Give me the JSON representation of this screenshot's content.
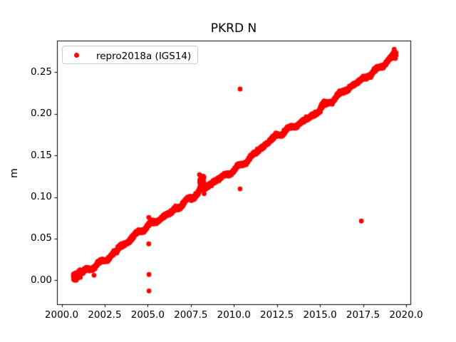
{
  "figure": {
    "background_color": "#ffffff",
    "spine_color": "#000000",
    "text_color": "#000000"
  },
  "chart_data": {
    "type": "scatter",
    "title": "PKRD N",
    "xlabel": "",
    "ylabel": "m",
    "grid": false,
    "xlim": [
      1999.73,
      2020.25
    ],
    "ylim": [
      -0.0293,
      0.2876
    ],
    "xticks": {
      "values": [
        2000.0,
        2002.5,
        2005.0,
        2007.5,
        2010.0,
        2012.5,
        2015.0,
        2017.5,
        2020.0
      ],
      "labels": [
        "2000.0",
        "2002.5",
        "2005.0",
        "2007.5",
        "2010.0",
        "2012.5",
        "2015.0",
        "2017.5",
        "2020.0"
      ]
    },
    "yticks": {
      "values": [
        0.0,
        0.05,
        0.1,
        0.15,
        0.2,
        0.25
      ],
      "labels": [
        "0.00",
        "0.05",
        "0.10",
        "0.15",
        "0.20",
        "0.25"
      ]
    },
    "legend": {
      "position": "upper-left",
      "entries": [
        {
          "label": "repro2018a (IGS14)",
          "marker": "dot",
          "color": "#ff0000"
        }
      ]
    },
    "series": [
      {
        "name": "repro2018a (IGS14)",
        "color": "#ff0000",
        "marker": "dot",
        "marker_radius_px": 3.4,
        "description": "Daily GPS north-position time series rising near-linearly from 0.00 m in late 2000 to 0.27 m in mid 2019",
        "trend": {
          "t_start": 2000.68,
          "t_end": 2019.42,
          "v_start": 0.001,
          "v_end": 0.27,
          "slope_m_per_yr": 0.01435,
          "sample_step_days": 2,
          "noise_sigma_m": 0.0009,
          "seed": 12,
          "wiggles": [
            [
              0.0012,
              1.0,
              0.0
            ],
            [
              0.0011,
              0.73,
              1.3
            ],
            [
              0.0018,
              3.9,
              0.5
            ],
            [
              0.0013,
              6.5,
              2.1
            ]
          ],
          "bursts": [
            {
              "t0": 2000.68,
              "t1": 2001.1,
              "sigma": 0.0018,
              "bias": 0.0
            },
            {
              "t0": 2003.25,
              "t1": 2003.5,
              "sigma": 0.0008,
              "bias": 0.002
            },
            {
              "t0": 2007.98,
              "t1": 2008.28,
              "sigma": 0.003,
              "bias": 0.002,
              "smear_up": 0.016,
              "smear_prob": 0.45
            },
            {
              "t0": 2015.02,
              "t1": 2015.3,
              "sigma": 0.0012,
              "bias": 0.003
            },
            {
              "t0": 2019.22,
              "t1": 2019.42,
              "sigma": 0.0018,
              "bias": 0.001
            }
          ]
        },
        "outliers": [
          [
            2001.88,
            0.006
          ],
          [
            2005.06,
            0.0755
          ],
          [
            2005.06,
            0.0437
          ],
          [
            2005.07,
            0.0069
          ],
          [
            2005.07,
            -0.0129
          ],
          [
            2010.36,
            0.2298
          ],
          [
            2010.36,
            0.1098
          ],
          [
            2017.4,
            0.0712
          ]
        ]
      }
    ]
  }
}
